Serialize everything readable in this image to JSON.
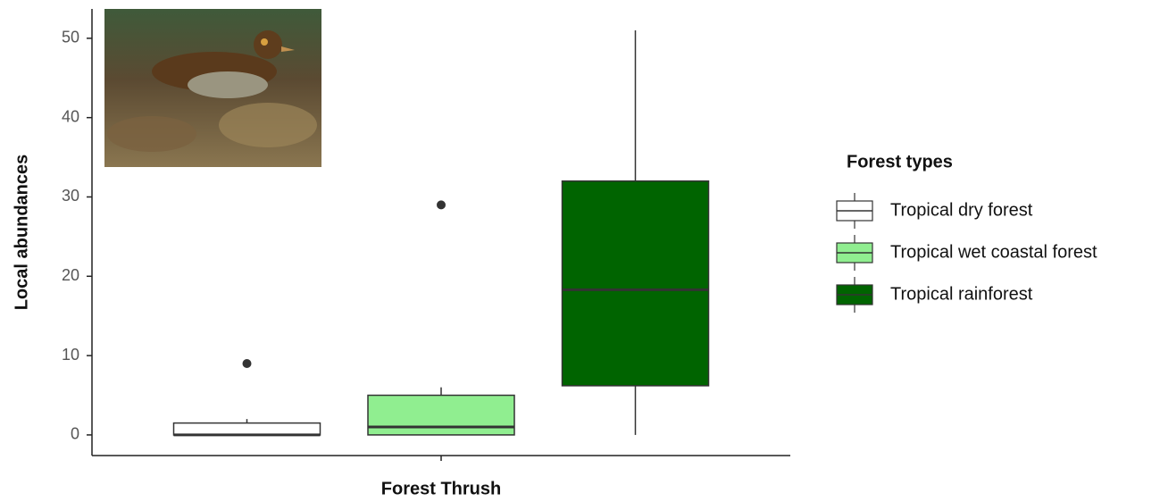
{
  "chart_data": {
    "type": "box",
    "x_label": "Forest Thrush",
    "y_label": "Local abundances",
    "categories": [
      "Forest Thrush"
    ],
    "ylim": [
      -2.6,
      53.7
    ],
    "yticks": [
      0,
      10,
      20,
      30,
      40,
      50
    ],
    "grid": false,
    "legend": {
      "title": "Forest types",
      "position": "right"
    },
    "series": [
      {
        "name": "Tropical dry forest",
        "color": "#ffffff",
        "min": 0,
        "q1": 0,
        "median": 0,
        "q3": 1.5,
        "max": 2,
        "outliers": [
          9
        ]
      },
      {
        "name": "Tropical wet coastal forest",
        "color": "#90ee90",
        "min": 0,
        "q1": 0,
        "median": 1,
        "q3": 5,
        "max": 6,
        "outliers": [
          29
        ]
      },
      {
        "name": "Tropical rainforest",
        "color": "#006400",
        "min": 0,
        "q1": 6.2,
        "median": 18.3,
        "q3": 32,
        "max": 51,
        "outliers": []
      }
    ]
  }
}
